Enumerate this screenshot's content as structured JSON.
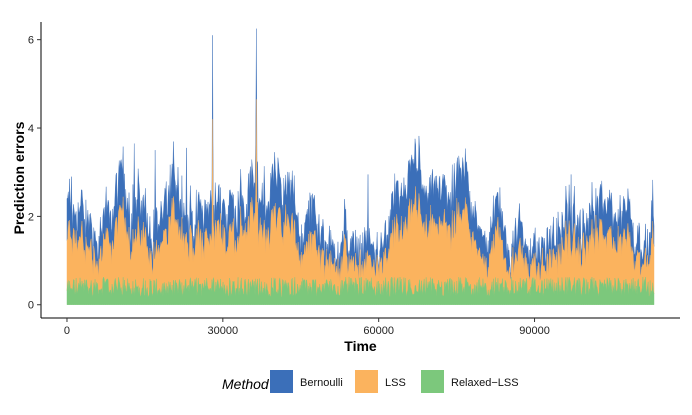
{
  "chart_data": {
    "type": "area",
    "stacked": true,
    "title": "",
    "xlabel": "Time",
    "ylabel": "Prediction errors",
    "xlim": [
      -5000,
      118000
    ],
    "ylim": [
      -0.3,
      6.4
    ],
    "xticks": [
      0,
      30000,
      60000,
      90000
    ],
    "xtick_labels": [
      "0",
      "30000",
      "60000",
      "90000"
    ],
    "yticks": [
      0,
      2,
      4,
      6
    ],
    "ytick_labels": [
      "0",
      "2",
      "4",
      "6"
    ],
    "x_range": [
      0,
      113000
    ],
    "grid": false,
    "legend": {
      "title": "Method",
      "position": "bottom",
      "entries": [
        "Bernoulli",
        "LSS",
        "Relaxed−LSS"
      ]
    },
    "series": [
      {
        "name": "Relaxed−LSS",
        "color": "#7CC87C",
        "description": "bottom layer, noisy band",
        "typical_range": [
          0.15,
          0.65
        ]
      },
      {
        "name": "LSS",
        "color": "#FBB35E",
        "description": "middle layer stacked on Relaxed−LSS",
        "typical_top": [
          0.6,
          1.9
        ],
        "peaks": [
          {
            "x": 28000,
            "top": 4.2
          },
          {
            "x": 36500,
            "top": 4.65
          }
        ]
      },
      {
        "name": "Bernoulli",
        "color": "#3B6FB9",
        "description": "top layer stacked on LSS",
        "typical_top": [
          0.8,
          2.7
        ],
        "peaks": [
          {
            "x": 900,
            "top": 2.9
          },
          {
            "x": 13000,
            "top": 3.65
          },
          {
            "x": 17000,
            "top": 3.5
          },
          {
            "x": 23000,
            "top": 3.55
          },
          {
            "x": 28000,
            "top": 6.1
          },
          {
            "x": 36500,
            "top": 6.25
          },
          {
            "x": 42500,
            "top": 2.85
          },
          {
            "x": 58000,
            "top": 2.95
          },
          {
            "x": 97000,
            "top": 2.95
          }
        ]
      }
    ]
  }
}
